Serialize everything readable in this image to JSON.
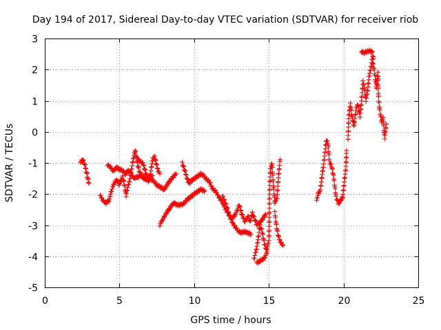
{
  "chart_data": {
    "type": "scatter",
    "title": "Day 194 of 2017, Sidereal Day-to-day VTEC variation (SDTVAR) for receiver riob",
    "xlabel": "GPS time / hours",
    "ylabel": "SDTVAR / TECUs",
    "xlim": [
      0,
      25
    ],
    "ylim": [
      -5,
      3
    ],
    "xticks": [
      "0",
      "5",
      "10",
      "15",
      "20",
      "25"
    ],
    "yticks": [
      "-5",
      "-4",
      "-3",
      "-2",
      "-1",
      "0",
      "1",
      "2",
      "3"
    ],
    "grid": true,
    "marker": "plus",
    "color": "#ff0000",
    "series": [
      {
        "name": "SDTVAR",
        "path": [
          [
            2.4,
            -0.95
          ],
          [
            2.55,
            -0.9
          ],
          [
            2.7,
            -1.1
          ],
          [
            2.8,
            -1.3
          ],
          [
            2.9,
            -1.55
          ],
          [
            2.95,
            -1.65
          ]
        ]
      },
      {
        "name": "SDTVAR",
        "path": [
          [
            3.7,
            -2.05
          ],
          [
            3.9,
            -2.2
          ],
          [
            4.1,
            -2.3
          ],
          [
            4.3,
            -2.2
          ],
          [
            4.4,
            -2.0
          ],
          [
            4.5,
            -1.85
          ],
          [
            4.6,
            -1.7
          ],
          [
            4.7,
            -1.6
          ],
          [
            4.85,
            -1.55
          ],
          [
            4.95,
            -1.7
          ],
          [
            5.05,
            -1.6
          ],
          [
            5.2,
            -1.45
          ],
          [
            5.35,
            -1.75
          ],
          [
            5.45,
            -2.05
          ],
          [
            5.55,
            -1.8
          ],
          [
            5.7,
            -1.5
          ],
          [
            5.85,
            -1.1
          ],
          [
            5.95,
            -0.8
          ],
          [
            6.05,
            -0.6
          ],
          [
            6.2,
            -1.0
          ],
          [
            6.35,
            -1.3
          ],
          [
            6.5,
            -1.45
          ],
          [
            6.7,
            -1.5
          ],
          [
            6.9,
            -1.55
          ],
          [
            7.1,
            -1.5
          ],
          [
            7.3,
            -1.6
          ],
          [
            7.5,
            -1.7
          ],
          [
            7.65,
            -1.75
          ],
          [
            7.8,
            -1.8
          ],
          [
            8.0,
            -1.85
          ],
          [
            8.2,
            -1.7
          ],
          [
            8.4,
            -1.55
          ],
          [
            8.6,
            -1.45
          ],
          [
            8.8,
            -1.35
          ]
        ]
      },
      {
        "name": "SDTVAR",
        "path": [
          [
            4.2,
            -1.05
          ],
          [
            4.4,
            -1.15
          ],
          [
            4.6,
            -1.25
          ],
          [
            4.8,
            -1.15
          ],
          [
            5.0,
            -1.2
          ],
          [
            5.2,
            -1.25
          ],
          [
            5.4,
            -1.35
          ],
          [
            5.55,
            -1.25
          ],
          [
            5.7,
            -1.3
          ],
          [
            5.85,
            -1.4
          ],
          [
            6.0,
            -1.5
          ],
          [
            6.2,
            -1.45
          ],
          [
            6.4,
            -1.4
          ],
          [
            6.6,
            -1.45
          ],
          [
            6.8,
            -1.5
          ],
          [
            7.0,
            -1.45
          ],
          [
            7.2,
            -1.4
          ]
        ]
      },
      {
        "name": "SDTVAR",
        "path": [
          [
            6.2,
            -0.85
          ],
          [
            6.4,
            -0.95
          ],
          [
            6.6,
            -1.05
          ],
          [
            6.75,
            -1.3
          ],
          [
            6.85,
            -1.45
          ],
          [
            6.95,
            -1.6
          ],
          [
            7.05,
            -1.4
          ],
          [
            7.15,
            -1.1
          ],
          [
            7.25,
            -0.85
          ],
          [
            7.35,
            -0.8
          ],
          [
            7.45,
            -1.0
          ],
          [
            7.55,
            -1.2
          ],
          [
            7.7,
            -1.35
          ]
        ]
      },
      {
        "name": "SDTVAR",
        "path": [
          [
            7.7,
            -3.0
          ],
          [
            7.9,
            -2.8
          ],
          [
            8.1,
            -2.65
          ],
          [
            8.3,
            -2.5
          ],
          [
            8.5,
            -2.35
          ],
          [
            8.7,
            -2.3
          ],
          [
            8.9,
            -2.35
          ],
          [
            9.1,
            -2.35
          ],
          [
            9.3,
            -2.3
          ],
          [
            9.5,
            -2.2
          ],
          [
            9.7,
            -2.1
          ],
          [
            9.9,
            -2.05
          ],
          [
            10.1,
            -1.95
          ],
          [
            10.3,
            -1.9
          ],
          [
            10.5,
            -1.85
          ],
          [
            10.7,
            -1.9
          ]
        ]
      },
      {
        "name": "SDTVAR",
        "path": [
          [
            9.2,
            -1.0
          ],
          [
            9.3,
            -1.15
          ],
          [
            9.4,
            -1.3
          ],
          [
            9.5,
            -1.45
          ],
          [
            9.6,
            -1.6
          ],
          [
            9.7,
            -1.65
          ],
          [
            9.85,
            -1.55
          ],
          [
            10.0,
            -1.5
          ],
          [
            10.2,
            -1.45
          ],
          [
            10.4,
            -1.35
          ],
          [
            10.6,
            -1.4
          ],
          [
            10.8,
            -1.5
          ],
          [
            11.0,
            -1.6
          ],
          [
            11.2,
            -1.8
          ],
          [
            11.4,
            -1.9
          ],
          [
            11.6,
            -2.05
          ],
          [
            11.8,
            -2.2
          ],
          [
            12.0,
            -2.4
          ],
          [
            12.2,
            -2.55
          ],
          [
            12.4,
            -2.75
          ],
          [
            12.6,
            -2.95
          ],
          [
            12.8,
            -3.1
          ],
          [
            13.0,
            -3.2
          ],
          [
            13.2,
            -3.25
          ],
          [
            13.4,
            -3.2
          ],
          [
            13.6,
            -3.25
          ],
          [
            13.8,
            -3.3
          ]
        ]
      },
      {
        "name": "SDTVAR",
        "path": [
          [
            11.9,
            -2.05
          ],
          [
            12.1,
            -2.3
          ],
          [
            12.3,
            -2.6
          ],
          [
            12.5,
            -2.8
          ],
          [
            12.7,
            -2.7
          ],
          [
            12.9,
            -2.5
          ],
          [
            13.0,
            -2.35
          ],
          [
            13.2,
            -2.65
          ],
          [
            13.4,
            -2.9
          ],
          [
            13.6,
            -2.7
          ],
          [
            13.75,
            -2.9
          ],
          [
            13.9,
            -2.6
          ],
          [
            14.05,
            -2.8
          ],
          [
            14.2,
            -3.0
          ],
          [
            14.4,
            -2.9
          ],
          [
            14.6,
            -2.8
          ],
          [
            14.8,
            -2.65
          ]
        ]
      },
      {
        "name": "SDTVAR",
        "path": [
          [
            14.0,
            -4.1
          ],
          [
            14.15,
            -3.8
          ],
          [
            14.3,
            -3.4
          ],
          [
            14.4,
            -3.0
          ],
          [
            14.55,
            -3.2
          ],
          [
            14.7,
            -3.6
          ],
          [
            14.85,
            -3.8
          ],
          [
            15.0,
            -3.5
          ],
          [
            15.05,
            -1.9
          ],
          [
            15.1,
            -1.2
          ],
          [
            15.2,
            -1.0
          ],
          [
            15.3,
            -1.7
          ],
          [
            15.4,
            -2.3
          ],
          [
            15.55,
            -2.1
          ],
          [
            15.65,
            -1.4
          ],
          [
            15.75,
            -0.9
          ]
        ]
      },
      {
        "name": "SDTVAR",
        "path": [
          [
            14.2,
            -4.2
          ],
          [
            14.45,
            -4.15
          ],
          [
            14.7,
            -4.05
          ],
          [
            14.9,
            -3.85
          ]
        ]
      },
      {
        "name": "SDTVAR",
        "path": [
          [
            15.4,
            -2.6
          ],
          [
            15.5,
            -3.0
          ],
          [
            15.6,
            -3.3
          ],
          [
            15.7,
            -3.45
          ],
          [
            15.8,
            -3.55
          ],
          [
            15.95,
            -3.65
          ]
        ]
      },
      {
        "name": "SDTVAR",
        "path": [
          [
            18.2,
            -2.2
          ],
          [
            18.3,
            -2.0
          ],
          [
            18.45,
            -1.85
          ],
          [
            18.55,
            -1.45
          ],
          [
            18.65,
            -1.1
          ],
          [
            18.75,
            -0.7
          ],
          [
            18.85,
            -0.25
          ],
          [
            18.95,
            -0.35
          ],
          [
            19.05,
            -0.95
          ],
          [
            19.2,
            -1.1
          ],
          [
            19.35,
            -1.5
          ],
          [
            19.5,
            -2.1
          ],
          [
            19.65,
            -2.3
          ],
          [
            19.8,
            -2.2
          ],
          [
            19.95,
            -2.1
          ],
          [
            20.05,
            -1.6
          ],
          [
            20.15,
            -1.2
          ],
          [
            20.2,
            -0.6
          ]
        ]
      },
      {
        "name": "SDTVAR",
        "path": [
          [
            20.3,
            -0.2
          ],
          [
            20.35,
            0.5
          ],
          [
            20.45,
            0.9
          ],
          [
            20.55,
            0.5
          ],
          [
            20.7,
            0.2
          ],
          [
            20.85,
            0.75
          ],
          [
            20.95,
            0.9
          ],
          [
            21.1,
            0.5
          ],
          [
            21.2,
            1.0
          ],
          [
            21.3,
            1.6
          ],
          [
            21.4,
            1.45
          ],
          [
            21.5,
            1.0
          ],
          [
            21.6,
            1.3
          ],
          [
            21.7,
            1.75
          ],
          [
            21.8,
            2.0
          ],
          [
            21.9,
            2.3
          ],
          [
            22.0,
            2.1
          ],
          [
            22.1,
            1.8
          ],
          [
            22.2,
            1.4
          ],
          [
            22.3,
            1.9
          ],
          [
            22.35,
            1.0
          ],
          [
            22.45,
            0.6
          ],
          [
            22.55,
            0.3
          ],
          [
            22.65,
            0.45
          ],
          [
            22.75,
            -0.2
          ],
          [
            22.85,
            0.25
          ]
        ]
      },
      {
        "name": "SDTVAR",
        "path": [
          [
            21.2,
            2.55
          ],
          [
            21.9,
            2.6
          ],
          [
            22.0,
            2.35
          ]
        ]
      }
    ]
  }
}
